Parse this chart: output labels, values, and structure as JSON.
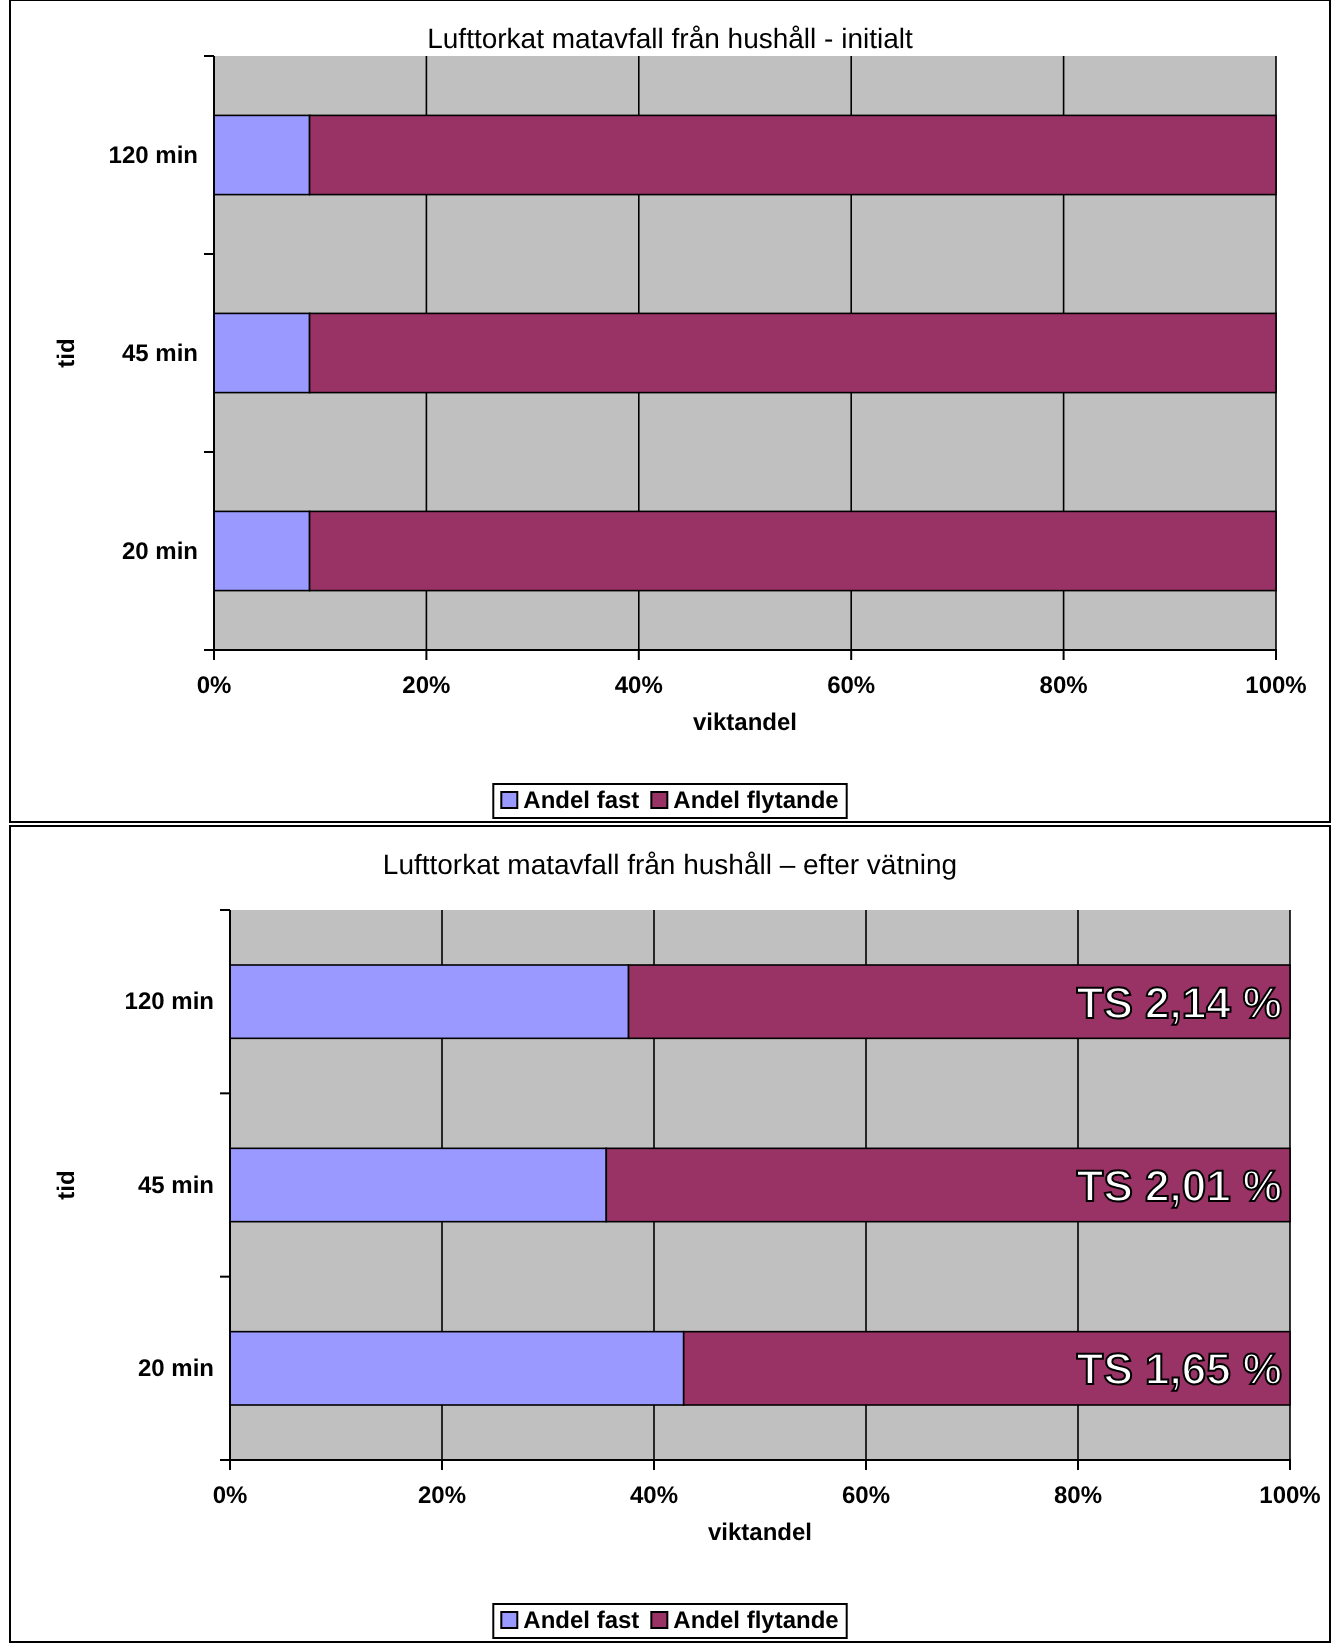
{
  "chart_data": [
    {
      "type": "bar",
      "orientation": "horizontal",
      "stacked": true,
      "title": "Lufttorkat matavfall från hushåll - initialt",
      "xlabel": "viktandel",
      "ylabel": "tid",
      "categories": [
        "120 min",
        "45 min",
        "20 min"
      ],
      "series": [
        {
          "name": "Andel fast",
          "color": "#9999ff",
          "values": [
            9,
            9,
            9
          ]
        },
        {
          "name": "Andel flytande",
          "color": "#993366",
          "values": [
            91,
            91,
            91
          ]
        }
      ],
      "xlim": [
        0,
        100
      ],
      "xticks": [
        {
          "value": 0,
          "label": "0%"
        },
        {
          "value": 20,
          "label": "20%"
        },
        {
          "value": 40,
          "label": "40%"
        },
        {
          "value": 60,
          "label": "60%"
        },
        {
          "value": 80,
          "label": "80%"
        },
        {
          "value": 100,
          "label": "100%"
        }
      ],
      "grid": "x",
      "legend": "bottom"
    },
    {
      "type": "bar",
      "orientation": "horizontal",
      "stacked": true,
      "title": "Lufttorkat matavfall från hushåll – efter vätning",
      "xlabel": "viktandel",
      "ylabel": "tid",
      "categories": [
        "120 min",
        "45 min",
        "20 min"
      ],
      "series": [
        {
          "name": "Andel fast",
          "color": "#9999ff",
          "values": [
            37.6,
            35.5,
            42.8
          ]
        },
        {
          "name": "Andel flytande",
          "color": "#993366",
          "values": [
            62.4,
            64.5,
            57.2
          ]
        }
      ],
      "xlim": [
        0,
        100
      ],
      "xticks": [
        {
          "value": 0,
          "label": "0%"
        },
        {
          "value": 20,
          "label": "20%"
        },
        {
          "value": 40,
          "label": "40%"
        },
        {
          "value": 60,
          "label": "60%"
        },
        {
          "value": 80,
          "label": "80%"
        },
        {
          "value": 100,
          "label": "100%"
        }
      ],
      "grid": "x",
      "legend": "bottom",
      "annotations": [
        "TS 2,14 %",
        "TS 2,01 %",
        "TS 1,65 %"
      ]
    }
  ]
}
